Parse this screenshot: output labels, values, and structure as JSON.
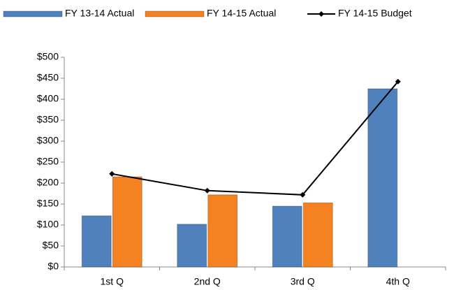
{
  "chart_data": {
    "type": "bar",
    "categories": [
      "1st Q",
      "2nd Q",
      "3rd Q",
      "4th Q"
    ],
    "series": [
      {
        "name": "FY 13-14 Actual",
        "color": "#4f81bd",
        "values": [
          122,
          102,
          145,
          425
        ]
      },
      {
        "name": "FY 14-15 Actual",
        "color": "#f58220",
        "values": [
          215,
          172,
          153,
          null
        ]
      },
      {
        "name": "FY 14-15 Budget",
        "color": "#000000",
        "type": "line",
        "values": [
          222,
          182,
          172,
          442
        ]
      }
    ],
    "ylim": [
      0,
      500
    ],
    "yticks": [
      {
        "value": 0,
        "label": "$0"
      },
      {
        "value": 50,
        "label": "$50"
      },
      {
        "value": 100,
        "label": "$100"
      },
      {
        "value": 150,
        "label": "$150"
      },
      {
        "value": 200,
        "label": "$200"
      },
      {
        "value": 250,
        "label": "$250"
      },
      {
        "value": 300,
        "label": "$300"
      },
      {
        "value": 350,
        "label": "$350"
      },
      {
        "value": 400,
        "label": "$400"
      },
      {
        "value": 450,
        "label": "$450"
      },
      {
        "value": 500,
        "label": "$500"
      }
    ],
    "grid": false,
    "legend": "top"
  }
}
